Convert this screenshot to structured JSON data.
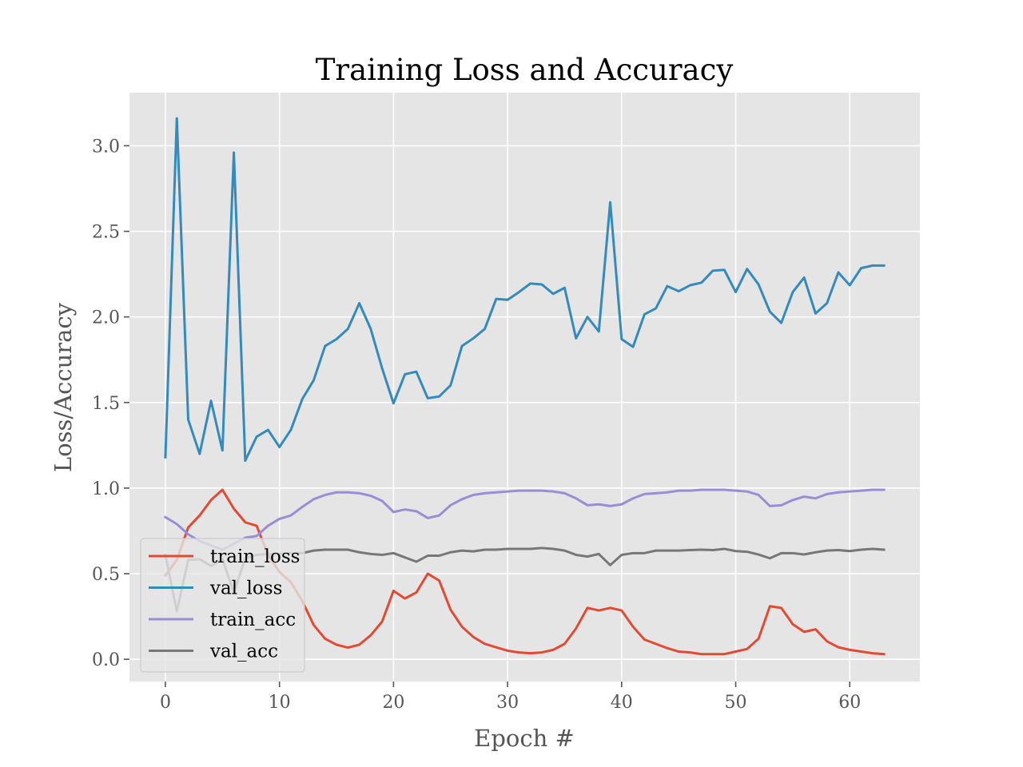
{
  "chart_data": {
    "type": "line",
    "title": "Training Loss and Accuracy",
    "xlabel": "Epoch #",
    "ylabel": "Loss/Accuracy",
    "xlim": [
      -3.15,
      66.15
    ],
    "ylim": [
      -0.13,
      3.31
    ],
    "xticks": [
      0,
      10,
      20,
      30,
      40,
      50,
      60
    ],
    "xtick_labels": [
      "0",
      "10",
      "20",
      "30",
      "40",
      "50",
      "60"
    ],
    "yticks": [
      0.0,
      0.5,
      1.0,
      1.5,
      2.0,
      2.5,
      3.0
    ],
    "ytick_labels": [
      "0.0",
      "0.5",
      "1.0",
      "1.5",
      "2.0",
      "2.5",
      "3.0"
    ],
    "grid": true,
    "legend_position": "lower-left",
    "background_color": "#e5e5e5",
    "x": [
      0,
      1,
      2,
      3,
      4,
      5,
      6,
      7,
      8,
      9,
      10,
      11,
      12,
      13,
      14,
      15,
      16,
      17,
      18,
      19,
      20,
      21,
      22,
      23,
      24,
      25,
      26,
      27,
      28,
      29,
      30,
      31,
      32,
      33,
      34,
      35,
      36,
      37,
      38,
      39,
      40,
      41,
      42,
      43,
      44,
      45,
      46,
      47,
      48,
      49,
      50,
      51,
      52,
      53,
      54,
      55,
      56,
      57,
      58,
      59,
      60,
      61,
      62,
      63
    ],
    "series": [
      {
        "name": "train_loss",
        "color": "#e24a33",
        "values": [
          0.49,
          0.58,
          0.77,
          0.84,
          0.93,
          0.99,
          0.88,
          0.8,
          0.78,
          0.61,
          0.51,
          0.45,
          0.34,
          0.2,
          0.12,
          0.085,
          0.068,
          0.085,
          0.14,
          0.22,
          0.4,
          0.355,
          0.39,
          0.5,
          0.46,
          0.29,
          0.19,
          0.13,
          0.09,
          0.07,
          0.05,
          0.04,
          0.035,
          0.04,
          0.055,
          0.09,
          0.18,
          0.3,
          0.285,
          0.3,
          0.285,
          0.19,
          0.115,
          0.09,
          0.065,
          0.045,
          0.04,
          0.03,
          0.03,
          0.03,
          0.045,
          0.06,
          0.12,
          0.31,
          0.3,
          0.205,
          0.16,
          0.175,
          0.105,
          0.07,
          0.055,
          0.045,
          0.035,
          0.03
        ]
      },
      {
        "name": "val_loss",
        "color": "#348abd",
        "values": [
          1.18,
          3.16,
          1.4,
          1.2,
          1.51,
          1.22,
          2.96,
          1.16,
          1.3,
          1.34,
          1.24,
          1.34,
          1.52,
          1.63,
          1.83,
          1.87,
          1.93,
          2.08,
          1.93,
          1.7,
          1.495,
          1.665,
          1.68,
          1.525,
          1.535,
          1.6,
          1.83,
          1.875,
          1.93,
          2.105,
          2.1,
          2.145,
          2.195,
          2.19,
          2.135,
          2.17,
          1.875,
          2.0,
          1.915,
          2.67,
          1.87,
          1.825,
          2.015,
          2.05,
          2.18,
          2.15,
          2.185,
          2.2,
          2.27,
          2.275,
          2.145,
          2.28,
          2.19,
          2.03,
          1.965,
          2.145,
          2.23,
          2.02,
          2.08,
          2.26,
          2.185,
          2.285,
          2.3,
          2.3
        ]
      },
      {
        "name": "train_acc",
        "color": "#988ed5",
        "values": [
          0.83,
          0.79,
          0.73,
          0.69,
          0.665,
          0.64,
          0.675,
          0.71,
          0.72,
          0.78,
          0.82,
          0.84,
          0.89,
          0.935,
          0.96,
          0.975,
          0.975,
          0.97,
          0.955,
          0.925,
          0.86,
          0.875,
          0.865,
          0.825,
          0.84,
          0.9,
          0.935,
          0.96,
          0.97,
          0.975,
          0.98,
          0.985,
          0.985,
          0.985,
          0.98,
          0.97,
          0.94,
          0.9,
          0.905,
          0.895,
          0.905,
          0.94,
          0.965,
          0.97,
          0.975,
          0.985,
          0.985,
          0.99,
          0.99,
          0.99,
          0.985,
          0.98,
          0.96,
          0.895,
          0.9,
          0.93,
          0.95,
          0.94,
          0.965,
          0.975,
          0.98,
          0.985,
          0.99,
          0.99
        ]
      },
      {
        "name": "val_acc",
        "color": "#777777",
        "values": [
          0.61,
          0.28,
          0.58,
          0.585,
          0.545,
          0.585,
          0.39,
          0.59,
          0.61,
          0.615,
          0.615,
          0.62,
          0.62,
          0.635,
          0.64,
          0.64,
          0.64,
          0.625,
          0.615,
          0.61,
          0.62,
          0.595,
          0.57,
          0.605,
          0.605,
          0.625,
          0.635,
          0.63,
          0.64,
          0.64,
          0.645,
          0.645,
          0.645,
          0.65,
          0.645,
          0.635,
          0.61,
          0.6,
          0.615,
          0.55,
          0.61,
          0.62,
          0.62,
          0.635,
          0.635,
          0.635,
          0.638,
          0.64,
          0.638,
          0.645,
          0.632,
          0.628,
          0.612,
          0.59,
          0.62,
          0.62,
          0.612,
          0.625,
          0.635,
          0.638,
          0.632,
          0.64,
          0.645,
          0.64
        ]
      }
    ]
  }
}
